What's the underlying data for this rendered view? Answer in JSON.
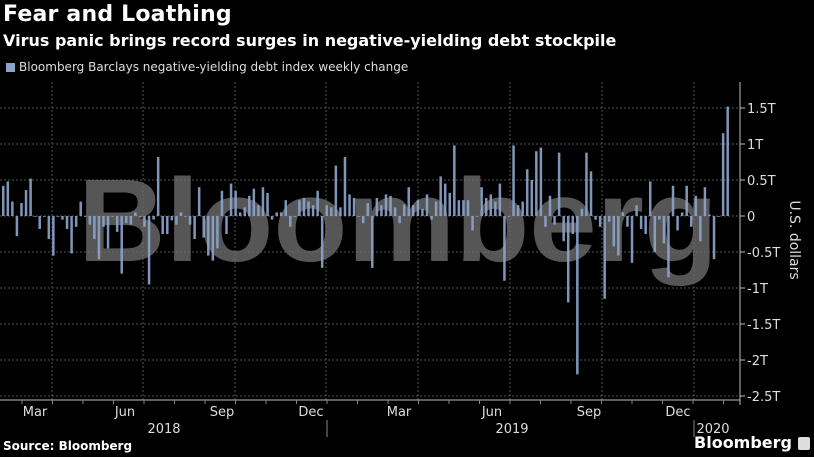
{
  "header": {
    "title": "Fear and Loathing",
    "subtitle": "Virus panic brings record surges in negative-yielding debt stockpile"
  },
  "footer": {
    "source": "Source: Bloomberg",
    "brand": "Bloomberg",
    "watermark": "Bloomberg"
  },
  "colors": {
    "bar": "#8aa3c9",
    "background": "#000000",
    "grid": "#555555"
  },
  "chart_data": {
    "type": "bar",
    "title": "Fear and Loathing",
    "subtitle": "Virus panic brings record surges in negative-yielding debt stockpile",
    "legend": [
      {
        "name": "Bloomberg Barclays negative-yielding debt index weekly change",
        "color": "#8aa3c9"
      }
    ],
    "legend_position": "top-left",
    "ylabel": "U.S. dollars",
    "ylim": [
      -2.6,
      1.75
    ],
    "yticks": [
      1.5,
      1,
      0.5,
      0,
      -0.5,
      -1,
      -1.5,
      -2,
      -2.5
    ],
    "ytick_labels": [
      "1.5T",
      "1T",
      "0.5T",
      "0",
      "-0.5T",
      "-1T",
      "-1.5T",
      "-2T",
      "-2.5T"
    ],
    "x_month_labels": [
      "Mar",
      "Jun",
      "Sep",
      "Dec",
      "Mar",
      "Jun",
      "Sep",
      "Dec"
    ],
    "x_year_labels": [
      "2018",
      "2019",
      "2020"
    ],
    "grid": true,
    "values": [
      0.42,
      0.48,
      0.2,
      -0.28,
      0.18,
      0.36,
      0.52,
      0,
      -0.18,
      0,
      -0.32,
      -0.55,
      0,
      -0.05,
      -0.18,
      -0.52,
      -0.15,
      0.2,
      0,
      -0.12,
      -0.32,
      -0.6,
      -0.15,
      -0.45,
      0,
      -0.22,
      -0.8,
      -0.1,
      -0.12,
      0.05,
      0,
      -0.15,
      -0.95,
      -0.05,
      0.82,
      -0.25,
      -0.25,
      -0.06,
      -0.12,
      0.05,
      0,
      -0.12,
      -0.32,
      0.4,
      -0.3,
      -0.55,
      -0.62,
      -0.45,
      0.35,
      -0.25,
      0.45,
      0.35,
      0.05,
      0.12,
      0.28,
      0.38,
      0.15,
      0.4,
      0.32,
      -0.05,
      0.05,
      0.05,
      0.22,
      -0.15,
      0,
      0.22,
      0.25,
      0.2,
      0.15,
      0.35,
      -0.72,
      0.15,
      0.12,
      0.7,
      0.12,
      0.82,
      0.3,
      0.25,
      0,
      -0.1,
      0.18,
      -0.72,
      0.25,
      0.15,
      0.3,
      0.28,
      0.12,
      -0.1,
      0.16,
      0.4,
      0.15,
      0.22,
      0.1,
      0.3,
      -0.05,
      0.2,
      0.55,
      0.45,
      0.32,
      0.98,
      0.22,
      0.22,
      0.22,
      -0.2,
      0,
      0.4,
      0.25,
      0.3,
      0.2,
      0.45,
      -0.9,
      0,
      0.98,
      0.15,
      0.2,
      0.65,
      0.5,
      0.9,
      0.95,
      -0.15,
      0.28,
      -0.12,
      0.88,
      -0.35,
      -1.2,
      -0.25,
      -2.2,
      0.1,
      0.88,
      0.62,
      -0.05,
      -0.15,
      -1.15,
      -0.08,
      -0.42,
      -0.55,
      0.05,
      -0.15,
      -0.65,
      0.15,
      -0.18,
      -0.25,
      0.48,
      -0.5,
      -0.05,
      -0.38,
      -0.85,
      0.42,
      -0.2,
      0.05,
      0.42,
      -0.15,
      0.28,
      -0.35,
      0.4,
      0.02,
      -0.6,
      0,
      1.15,
      1.52
    ]
  }
}
